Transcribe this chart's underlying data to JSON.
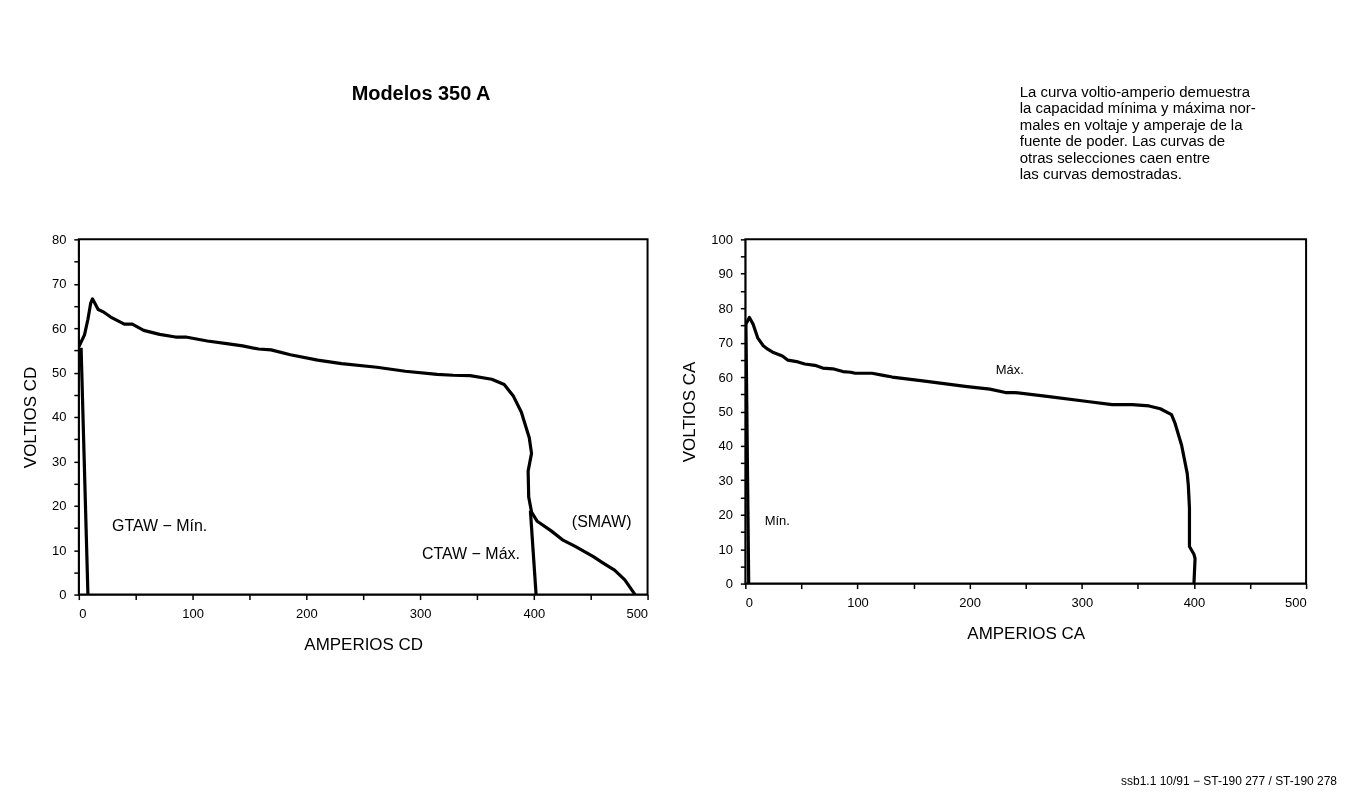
{
  "chart_data": [
    {
      "type": "line",
      "title": "Modelos 350 A",
      "xlabel": "AMPERIOS CD",
      "ylabel": "VOLTIOS CD",
      "xlim": [
        0,
        500
      ],
      "ylim": [
        0,
        80
      ],
      "grid": false,
      "xticks": [
        0,
        {
          "value": 50,
          "label": null
        },
        100,
        {
          "value": 150,
          "label": null
        },
        200,
        {
          "value": 250,
          "label": null
        },
        300,
        {
          "value": 350,
          "label": null
        },
        400,
        {
          "value": 450,
          "label": null
        },
        500
      ],
      "yticks": [
        0,
        {
          "value": 5,
          "label": null
        },
        10,
        {
          "value": 15,
          "label": null
        },
        20,
        {
          "value": 25,
          "label": null
        },
        30,
        {
          "value": 35,
          "label": null
        },
        40,
        {
          "value": 45,
          "label": null
        },
        50,
        {
          "value": 55,
          "label": null
        },
        60,
        {
          "value": 65,
          "label": null
        },
        70,
        {
          "value": 75,
          "label": null
        },
        80
      ],
      "series": [
        {
          "name": "(SMAW)",
          "color": "#000000",
          "x": [
            0,
            5,
            8,
            10.5,
            12,
            17,
            22,
            28,
            40,
            47,
            57,
            71,
            85,
            94,
            113,
            130,
            144,
            158,
            169,
            186,
            210,
            231,
            262,
            287,
            315,
            329,
            344,
            363,
            374,
            382,
            389,
            396,
            398,
            395,
            395.5,
            398,
            403,
            415,
            426,
            436,
            452,
            461,
            471,
            480,
            489
          ],
          "values": [
            55.8,
            58.5,
            62,
            65.7,
            66.6,
            64.2,
            63.6,
            62.5,
            60.9,
            60.9,
            59.5,
            58.6,
            58,
            58,
            57.1,
            56.5,
            56,
            55.3,
            55.1,
            54,
            52.8,
            52,
            51.2,
            50.3,
            49.6,
            49.4,
            49.3,
            48.5,
            47.3,
            44.7,
            41.1,
            35.3,
            31.8,
            27.8,
            22,
            18.6,
            16.5,
            14.4,
            12.2,
            10.9,
            8.6,
            7.1,
            5.5,
            3.3,
            0
          ]
        },
        {
          "name": "GTAW − Mín.",
          "color": "#000000",
          "x": [
            2,
            8
          ],
          "values": [
            55.6,
            0
          ]
        },
        {
          "name": "CTAW − Máx.",
          "color": "#000000",
          "x": [
            397,
            402
          ],
          "values": [
            18.9,
            0
          ]
        }
      ]
    },
    {
      "type": "line",
      "xlabel": "AMPERIOS CA",
      "ylabel": "VOLTIOS CA",
      "xlim": [
        0,
        500
      ],
      "ylim": [
        0,
        100
      ],
      "grid": false,
      "xticks": [
        0,
        {
          "value": 50,
          "label": null
        },
        100,
        {
          "value": 150,
          "label": null
        },
        200,
        {
          "value": 250,
          "label": null
        },
        300,
        {
          "value": 350,
          "label": null
        },
        400,
        {
          "value": 450,
          "label": null
        },
        500
      ],
      "yticks": [
        0,
        {
          "value": 5,
          "label": null
        },
        10,
        {
          "value": 15,
          "label": null
        },
        20,
        {
          "value": 25,
          "label": null
        },
        30,
        {
          "value": 35,
          "label": null
        },
        40,
        {
          "value": 45,
          "label": null
        },
        50,
        {
          "value": 55,
          "label": null
        },
        60,
        {
          "value": 65,
          "label": null
        },
        70,
        {
          "value": 75,
          "label": null
        },
        80,
        {
          "value": 85,
          "label": null
        },
        90,
        {
          "value": 95,
          "label": null
        },
        100
      ],
      "series": [
        {
          "name": "Máx.",
          "color": "#000000",
          "x": [
            0.7,
            3.6,
            7,
            11,
            16,
            20,
            25,
            33,
            38,
            47,
            53,
            62,
            69,
            78,
            87,
            94,
            98,
            113,
            123,
            131,
            160,
            196,
            218,
            232,
            240,
            269,
            305,
            327,
            345,
            360,
            370,
            380,
            383,
            389,
            394,
            395,
            396,
            396,
            400,
            401,
            400
          ],
          "values": [
            75.5,
            77.3,
            75.3,
            71.4,
            69.1,
            68.1,
            67.1,
            66.1,
            64.9,
            64.4,
            63.8,
            63.4,
            62.6,
            62.4,
            61.6,
            61.4,
            61.1,
            61.1,
            60.5,
            60,
            58.8,
            57.3,
            56.5,
            55.5,
            55.5,
            54.4,
            52.9,
            52,
            52,
            51.6,
            50.8,
            49.1,
            46.7,
            40.2,
            32,
            28.5,
            22,
            10.8,
            8.5,
            7.3,
            0
          ]
        },
        {
          "name": "Mín.",
          "color": "#000000",
          "x": [
            0.5,
            3
          ],
          "values": [
            76,
            0
          ]
        }
      ],
      "annotations": [
        "La curva voltio-amperio demuestra\nla capacidad mínima y máxima nor-\nmales en voltaje y amperaje de la\nfuente de poder. Las curvas de\notras selecciones caen entre\nlas curvas demostradas.",
        "ssb1.1 10/91 − ST-190 277 / ST-190 278"
      ]
    }
  ]
}
